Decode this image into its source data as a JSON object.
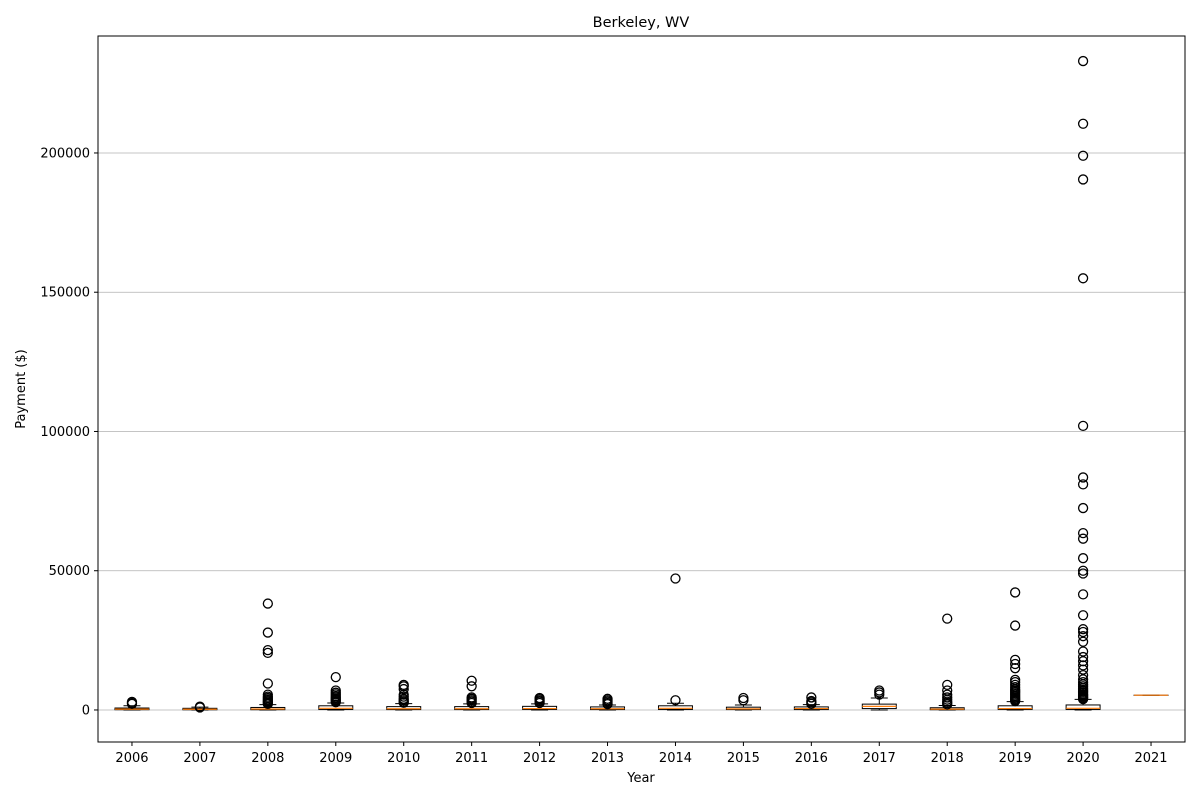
{
  "chart_data": {
    "type": "box",
    "title": "Berkeley, WV",
    "xlabel": "Year",
    "ylabel": "Payment ($)",
    "ylim": [
      -11500,
      242000
    ],
    "yticks": [
      0,
      50000,
      100000,
      150000,
      200000
    ],
    "grid": "y-major",
    "categories": [
      "2006",
      "2007",
      "2008",
      "2009",
      "2010",
      "2011",
      "2012",
      "2013",
      "2014",
      "2015",
      "2016",
      "2017",
      "2018",
      "2019",
      "2020",
      "2021"
    ],
    "boxes": [
      {
        "year": "2006",
        "whislo": 0,
        "q1": 100,
        "med": 300,
        "q3": 700,
        "whishi": 1500,
        "fliers": [
          2200,
          2500,
          2900
        ]
      },
      {
        "year": "2007",
        "whislo": 0,
        "q1": 80,
        "med": 250,
        "q3": 600,
        "whishi": 1000,
        "fliers": [
          900,
          1200
        ]
      },
      {
        "year": "2008",
        "whislo": 0,
        "q1": 100,
        "med": 350,
        "q3": 900,
        "whishi": 1900,
        "fliers": [
          2200,
          2600,
          3000,
          3400,
          3800,
          4300,
          4800,
          5500,
          9500,
          20500,
          21500,
          27800,
          38200
        ]
      },
      {
        "year": "2009",
        "whislo": 0,
        "q1": 200,
        "med": 600,
        "q3": 1500,
        "whishi": 2500,
        "fliers": [
          2800,
          3200,
          3600,
          4000,
          4500,
          5000,
          5600,
          6200,
          7000,
          11800
        ]
      },
      {
        "year": "2010",
        "whislo": 0,
        "q1": 150,
        "med": 450,
        "q3": 1200,
        "whishi": 2300,
        "fliers": [
          2600,
          3000,
          3500,
          4000,
          4800,
          5500,
          7500,
          8500,
          9000
        ]
      },
      {
        "year": "2011",
        "whislo": 0,
        "q1": 150,
        "med": 450,
        "q3": 1200,
        "whishi": 2200,
        "fliers": [
          2500,
          3000,
          3500,
          4000,
          4500,
          8500,
          10500
        ]
      },
      {
        "year": "2012",
        "whislo": 0,
        "q1": 200,
        "med": 500,
        "q3": 1300,
        "whishi": 2200,
        "fliers": [
          2500,
          3000,
          3400,
          3900,
          4300
        ]
      },
      {
        "year": "2013",
        "whislo": 0,
        "q1": 150,
        "med": 450,
        "q3": 1100,
        "whishi": 1800,
        "fliers": [
          2100,
          2500,
          3000,
          3500,
          4000
        ]
      },
      {
        "year": "2014",
        "whislo": 0,
        "q1": 200,
        "med": 600,
        "q3": 1500,
        "whishi": 2400,
        "fliers": [
          3500,
          47200
        ]
      },
      {
        "year": "2015",
        "whislo": 0,
        "q1": 150,
        "med": 400,
        "q3": 1000,
        "whishi": 1800,
        "fliers": [
          3500,
          4300
        ]
      },
      {
        "year": "2016",
        "whislo": 0,
        "q1": 150,
        "med": 500,
        "q3": 1100,
        "whishi": 1900,
        "fliers": [
          2200,
          2700,
          3200,
          4500
        ]
      },
      {
        "year": "2017",
        "whislo": 0,
        "q1": 500,
        "med": 1300,
        "q3": 2100,
        "whishi": 4300,
        "fliers": [
          5500,
          6300,
          7000
        ]
      },
      {
        "year": "2018",
        "whislo": 0,
        "q1": 100,
        "med": 300,
        "q3": 800,
        "whishi": 1600,
        "fliers": [
          2000,
          2500,
          3000,
          3700,
          4500,
          5500,
          7000,
          9000,
          32800
        ]
      },
      {
        "year": "2019",
        "whislo": 0,
        "q1": 200,
        "med": 500,
        "q3": 1500,
        "whishi": 3000,
        "fliers": [
          3200,
          3600,
          4000,
          4500,
          5000,
          5500,
          6000,
          6500,
          7000,
          7500,
          8200,
          9000,
          10000,
          10800,
          15000,
          16500,
          18000,
          30300,
          42200
        ]
      },
      {
        "year": "2020",
        "whislo": 0,
        "q1": 200,
        "med": 600,
        "q3": 1800,
        "whishi": 3800,
        "fliers": [
          3900,
          4200,
          4500,
          4900,
          5300,
          5700,
          6200,
          6700,
          7200,
          7800,
          8500,
          9200,
          10000,
          11000,
          12500,
          14500,
          16000,
          17500,
          19000,
          21000,
          24500,
          26500,
          28000,
          29000,
          34000,
          41500,
          49000,
          50000,
          54500,
          61500,
          63500,
          72500,
          81000,
          83500,
          102000,
          155000,
          190500,
          199000,
          210500,
          233000
        ]
      },
      {
        "year": "2021",
        "whislo": 5300,
        "q1": 5300,
        "med": 5300,
        "q3": 5300,
        "whishi": 5300,
        "fliers": []
      }
    ],
    "colors": {
      "box_edge": "#000000",
      "box_fill": "#ffffff",
      "median": "#ff7f0e",
      "flier": "#000000",
      "grid": "#b0b0b0"
    }
  }
}
